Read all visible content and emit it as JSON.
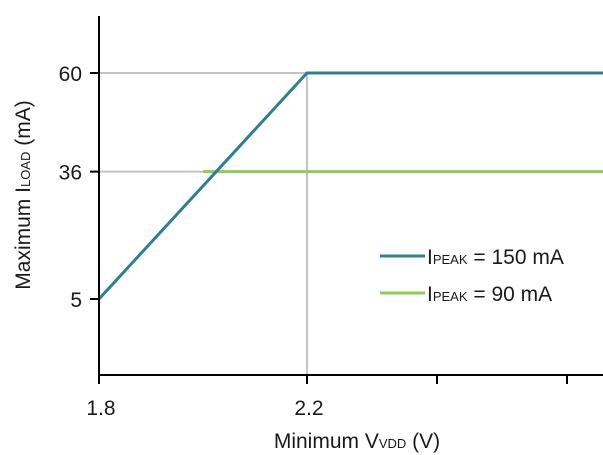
{
  "chart_data": {
    "type": "line",
    "xlabel": {
      "main": "Minimum V",
      "sub": "VDD",
      "unit": " (V)"
    },
    "ylabel": {
      "main": "Maximum I",
      "sub": "LOAD",
      "unit": " (mA)"
    },
    "xlim": [
      1.8,
      2.7
    ],
    "ylim": [
      -10,
      75
    ],
    "x_tick_values": [
      1.8,
      2.2,
      2.45,
      2.7
    ],
    "x_tick_labels": [
      "1.8",
      "2.2",
      "",
      ""
    ],
    "y_tick_values": [
      5,
      36,
      60
    ],
    "y_tick_labels": [
      "5",
      "36",
      "60"
    ],
    "reference_lines": {
      "y": [
        60,
        36
      ],
      "x": [
        2.2
      ]
    },
    "grid": false,
    "legend_position": "right",
    "series": [
      {
        "name": {
          "main": "I",
          "sub": "PEAK",
          "rest": " = 150 mA"
        },
        "color": "#2e7f96",
        "points": [
          [
            1.8,
            5
          ],
          [
            2.2,
            60
          ],
          [
            2.8,
            60
          ]
        ]
      },
      {
        "name": {
          "main": "I",
          "sub": "PEAK",
          "rest": " = 90 mA"
        },
        "color": "#8fcb5a",
        "points": [
          [
            2.0,
            36
          ],
          [
            2.8,
            36
          ]
        ]
      }
    ]
  }
}
